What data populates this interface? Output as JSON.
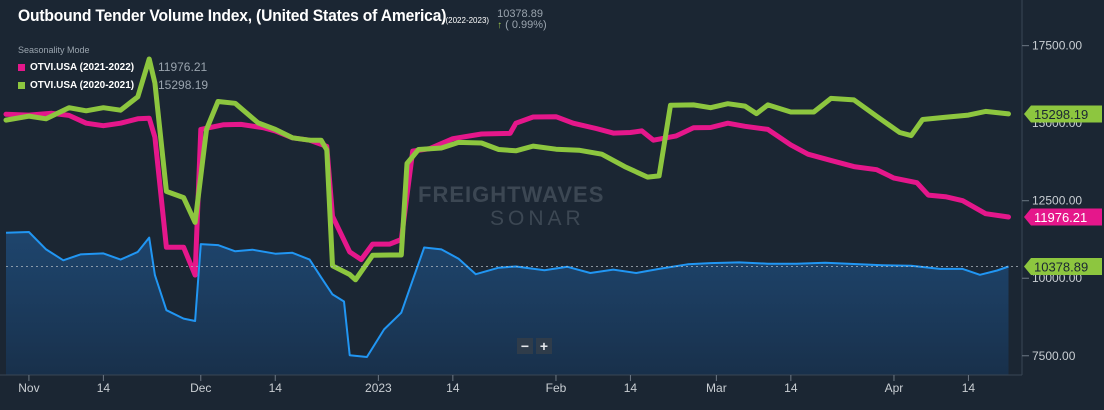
{
  "header": {
    "title": "Outbound Tender Volume Index, (United States of America)",
    "title_years": "(2022-2023)",
    "current_value": "10378.89",
    "change": "( 0.99%)",
    "seasonality_label": "Seasonality Mode"
  },
  "legend": [
    {
      "name": "OTVI.USA (2021-2022)",
      "value": "11976.21",
      "color": "#e5178b"
    },
    {
      "name": "OTVI.USA (2020-2021)",
      "value": "15298.19",
      "color": "#8dc63f"
    }
  ],
  "watermark": {
    "brand": "FREIGHTWAVES",
    "product": "SONAR"
  },
  "controls": {
    "zoom_out": "−",
    "zoom_in": "+"
  },
  "chart_data": {
    "type": "line",
    "title": "Outbound Tender Volume Index, (United States of America)",
    "y_axis": {
      "ticks": [
        7500,
        10000,
        12500,
        17500
      ],
      "tick_labels": [
        "7500.00",
        "10000.00",
        "12500.00",
        "17500.00"
      ],
      "range": [
        6880,
        18650
      ],
      "position": "right",
      "partially_hidden_tick": {
        "value": 15000,
        "label": "15000.00"
      }
    },
    "x_axis": {
      "range": [
        "2022-10-28",
        "2023-04-23"
      ],
      "ticks": [
        {
          "date": "2022-11-01",
          "label": "Nov"
        },
        {
          "date": "2022-11-14",
          "label": "14"
        },
        {
          "date": "2022-12-01",
          "label": "Dec"
        },
        {
          "date": "2022-12-14",
          "label": "14"
        },
        {
          "date": "2023-01-01",
          "label": "2023"
        },
        {
          "date": "2023-01-14",
          "label": "14"
        },
        {
          "date": "2023-02-01",
          "label": "Feb"
        },
        {
          "date": "2023-02-14",
          "label": "14"
        },
        {
          "date": "2023-03-01",
          "label": "Mar"
        },
        {
          "date": "2023-03-14",
          "label": "14"
        },
        {
          "date": "2023-04-01",
          "label": "Apr"
        },
        {
          "date": "2023-04-14",
          "label": "14"
        }
      ]
    },
    "reference_line": {
      "value": 10378.89
    },
    "series": [
      {
        "name": "OTVI.USA (2021-2022)",
        "color": "#e5178b",
        "last_value_label": "11976.21",
        "points": [
          [
            "2022-10-28",
            15290
          ],
          [
            "2022-11-01",
            15260
          ],
          [
            "2022-11-05",
            15320
          ],
          [
            "2022-11-08",
            15250
          ],
          [
            "2022-11-11",
            15000
          ],
          [
            "2022-11-14",
            14920
          ],
          [
            "2022-11-17",
            15000
          ],
          [
            "2022-11-20",
            15140
          ],
          [
            "2022-11-22",
            15160
          ],
          [
            "2022-11-23",
            14550
          ],
          [
            "2022-11-25",
            11000
          ],
          [
            "2022-11-28",
            11000
          ],
          [
            "2022-11-30",
            10100
          ],
          [
            "2022-12-01",
            14800
          ],
          [
            "2022-12-05",
            14950
          ],
          [
            "2022-12-08",
            14960
          ],
          [
            "2022-12-12",
            14850
          ],
          [
            "2022-12-14",
            14750
          ],
          [
            "2022-12-17",
            14530
          ],
          [
            "2022-12-20",
            14450
          ],
          [
            "2022-12-23",
            14250
          ],
          [
            "2022-12-24",
            12000
          ],
          [
            "2022-12-27",
            10850
          ],
          [
            "2022-12-29",
            10600
          ],
          [
            "2022-12-31",
            11100
          ],
          [
            "2023-01-03",
            11100
          ],
          [
            "2023-01-05",
            11250
          ],
          [
            "2023-01-07",
            14100
          ],
          [
            "2023-01-10",
            14180
          ],
          [
            "2023-01-14",
            14500
          ],
          [
            "2023-01-19",
            14650
          ],
          [
            "2023-01-24",
            14670
          ],
          [
            "2023-01-25",
            15000
          ],
          [
            "2023-01-28",
            15200
          ],
          [
            "2023-02-01",
            15210
          ],
          [
            "2023-02-04",
            15000
          ],
          [
            "2023-02-08",
            14830
          ],
          [
            "2023-02-11",
            14680
          ],
          [
            "2023-02-14",
            14700
          ],
          [
            "2023-02-16",
            14750
          ],
          [
            "2023-02-18",
            14450
          ],
          [
            "2023-02-22",
            14590
          ],
          [
            "2023-02-25",
            14850
          ],
          [
            "2023-02-28",
            14860
          ],
          [
            "2023-03-03",
            15000
          ],
          [
            "2023-03-06",
            14900
          ],
          [
            "2023-03-10",
            14800
          ],
          [
            "2023-03-14",
            14300
          ],
          [
            "2023-03-17",
            14000
          ],
          [
            "2023-03-21",
            13800
          ],
          [
            "2023-03-25",
            13600
          ],
          [
            "2023-03-29",
            13500
          ],
          [
            "2023-04-01",
            13230
          ],
          [
            "2023-04-05",
            13080
          ],
          [
            "2023-04-07",
            12680
          ],
          [
            "2023-04-10",
            12630
          ],
          [
            "2023-04-13",
            12500
          ],
          [
            "2023-04-17",
            12080
          ],
          [
            "2023-04-21",
            11976.21
          ]
        ]
      },
      {
        "name": "OTVI.USA (2020-2021)",
        "color": "#8dc63f",
        "last_value_label": "15298.19",
        "points": [
          [
            "2022-10-28",
            15100
          ],
          [
            "2022-11-01",
            15230
          ],
          [
            "2022-11-04",
            15140
          ],
          [
            "2022-11-08",
            15500
          ],
          [
            "2022-11-11",
            15400
          ],
          [
            "2022-11-14",
            15500
          ],
          [
            "2022-11-17",
            15420
          ],
          [
            "2022-11-20",
            15850
          ],
          [
            "2022-11-22",
            17070
          ],
          [
            "2022-11-23",
            16300
          ],
          [
            "2022-11-25",
            12800
          ],
          [
            "2022-11-28",
            12600
          ],
          [
            "2022-11-30",
            11800
          ],
          [
            "2022-12-02",
            14800
          ],
          [
            "2022-12-04",
            15700
          ],
          [
            "2022-12-07",
            15640
          ],
          [
            "2022-12-11",
            15010
          ],
          [
            "2022-12-14",
            14800
          ],
          [
            "2022-12-17",
            14530
          ],
          [
            "2022-12-20",
            14450
          ],
          [
            "2022-12-22",
            14450
          ],
          [
            "2022-12-23",
            14140
          ],
          [
            "2022-12-24",
            10400
          ],
          [
            "2022-12-27",
            10120
          ],
          [
            "2022-12-28",
            9950
          ],
          [
            "2022-12-31",
            10740
          ],
          [
            "2023-01-03",
            10750
          ],
          [
            "2023-01-05",
            10750
          ],
          [
            "2023-01-06",
            13700
          ],
          [
            "2023-01-08",
            14150
          ],
          [
            "2023-01-12",
            14200
          ],
          [
            "2023-01-15",
            14380
          ],
          [
            "2023-01-19",
            14360
          ],
          [
            "2023-01-22",
            14150
          ],
          [
            "2023-01-25",
            14110
          ],
          [
            "2023-01-28",
            14260
          ],
          [
            "2023-02-01",
            14160
          ],
          [
            "2023-02-05",
            14130
          ],
          [
            "2023-02-09",
            14000
          ],
          [
            "2023-02-13",
            13600
          ],
          [
            "2023-02-17",
            13260
          ],
          [
            "2023-02-19",
            13300
          ],
          [
            "2023-02-21",
            15580
          ],
          [
            "2023-02-25",
            15590
          ],
          [
            "2023-02-28",
            15500
          ],
          [
            "2023-03-03",
            15630
          ],
          [
            "2023-03-06",
            15550
          ],
          [
            "2023-03-08",
            15310
          ],
          [
            "2023-03-10",
            15590
          ],
          [
            "2023-03-14",
            15360
          ],
          [
            "2023-03-18",
            15360
          ],
          [
            "2023-03-21",
            15800
          ],
          [
            "2023-03-25",
            15750
          ],
          [
            "2023-03-29",
            15220
          ],
          [
            "2023-04-02",
            14700
          ],
          [
            "2023-04-04",
            14600
          ],
          [
            "2023-04-06",
            15120
          ],
          [
            "2023-04-10",
            15190
          ],
          [
            "2023-04-14",
            15260
          ],
          [
            "2023-04-17",
            15380
          ],
          [
            "2023-04-21",
            15298.19
          ]
        ]
      },
      {
        "name": "OTVI.USA (2022-2023)",
        "color": "#2196f3",
        "fill": true,
        "last_value_label": "10378.89",
        "points": [
          [
            "2022-10-28",
            11470
          ],
          [
            "2022-11-01",
            11490
          ],
          [
            "2022-11-04",
            10930
          ],
          [
            "2022-11-07",
            10580
          ],
          [
            "2022-11-10",
            10770
          ],
          [
            "2022-11-14",
            10800
          ],
          [
            "2022-11-17",
            10600
          ],
          [
            "2022-11-20",
            10850
          ],
          [
            "2022-11-22",
            11310
          ],
          [
            "2022-11-23",
            10100
          ],
          [
            "2022-11-25",
            8970
          ],
          [
            "2022-11-28",
            8700
          ],
          [
            "2022-11-30",
            8620
          ],
          [
            "2022-12-01",
            11100
          ],
          [
            "2022-12-04",
            11070
          ],
          [
            "2022-12-07",
            10870
          ],
          [
            "2022-12-10",
            10920
          ],
          [
            "2022-12-14",
            10790
          ],
          [
            "2022-12-17",
            10820
          ],
          [
            "2022-12-20",
            10600
          ],
          [
            "2022-12-22",
            10030
          ],
          [
            "2022-12-24",
            9480
          ],
          [
            "2022-12-26",
            9250
          ],
          [
            "2022-12-27",
            7520
          ],
          [
            "2022-12-30",
            7460
          ],
          [
            "2023-01-02",
            8350
          ],
          [
            "2023-01-05",
            8890
          ],
          [
            "2023-01-07",
            9940
          ],
          [
            "2023-01-09",
            10990
          ],
          [
            "2023-01-12",
            10930
          ],
          [
            "2023-01-15",
            10630
          ],
          [
            "2023-01-18",
            10130
          ],
          [
            "2023-01-22",
            10340
          ],
          [
            "2023-01-25",
            10380
          ],
          [
            "2023-01-30",
            10260
          ],
          [
            "2023-02-03",
            10370
          ],
          [
            "2023-02-07",
            10170
          ],
          [
            "2023-02-11",
            10280
          ],
          [
            "2023-02-15",
            10170
          ],
          [
            "2023-02-19",
            10300
          ],
          [
            "2023-02-24",
            10450
          ],
          [
            "2023-02-28",
            10490
          ],
          [
            "2023-03-05",
            10510
          ],
          [
            "2023-03-10",
            10470
          ],
          [
            "2023-03-15",
            10470
          ],
          [
            "2023-03-20",
            10500
          ],
          [
            "2023-03-25",
            10460
          ],
          [
            "2023-03-30",
            10420
          ],
          [
            "2023-04-04",
            10400
          ],
          [
            "2023-04-09",
            10300
          ],
          [
            "2023-04-13",
            10300
          ],
          [
            "2023-04-16",
            10110
          ],
          [
            "2023-04-19",
            10250
          ],
          [
            "2023-04-21",
            10378.89
          ]
        ]
      }
    ]
  }
}
